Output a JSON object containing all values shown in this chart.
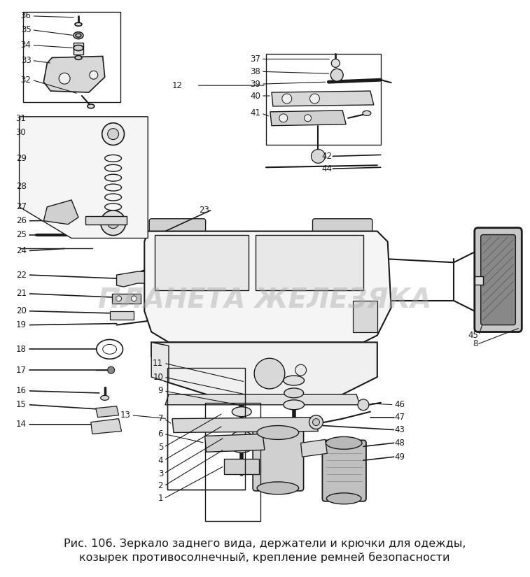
{
  "title_line1": "Рис. 106. Зеркало заднего вида, держатели и крючки для одежды,",
  "title_line2": "козырек противосолнечный, крепление ремней безопасности",
  "watermark": "ПЛАНЕТА ЖЕЛЕЗЯКА",
  "background_color": "#ffffff",
  "title_fontsize": 11.5,
  "watermark_fontsize": 28,
  "fig_width": 7.57,
  "fig_height": 8.25,
  "dpi": 100,
  "line_color": "#1a1a1a",
  "fill_light": "#e8e8e8",
  "fill_dark": "#b0b0b0",
  "fill_hatched": "#888888"
}
